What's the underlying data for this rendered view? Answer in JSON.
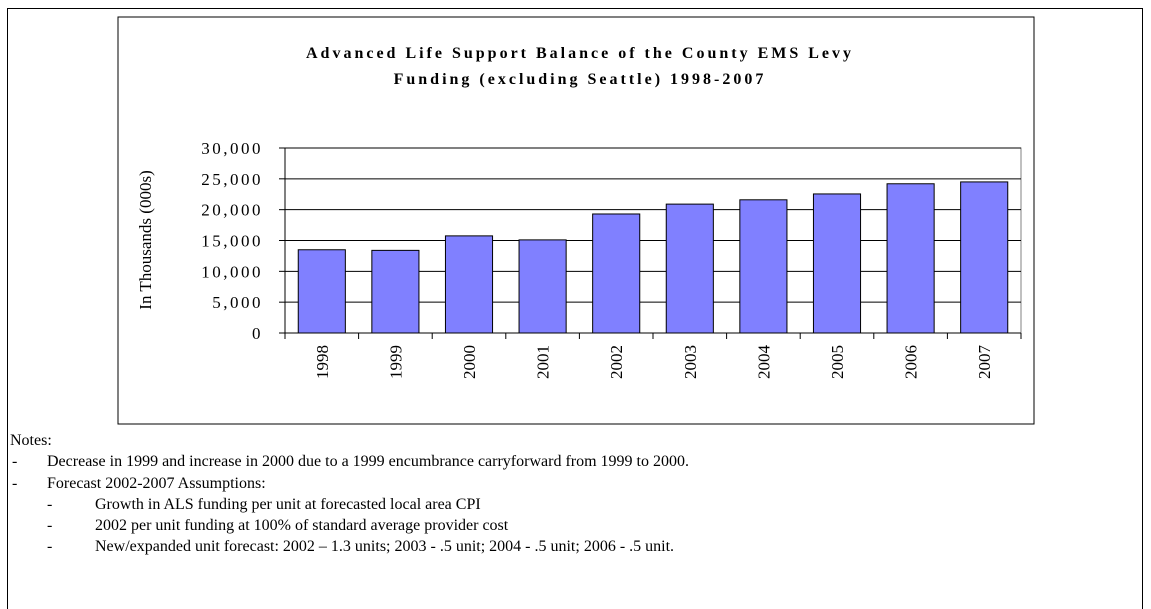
{
  "chart_data": {
    "type": "bar",
    "title": [
      "Advanced Life Support Balance of the County EMS Levy",
      "Funding (excluding Seattle) 1998-2007"
    ],
    "y_label": "In Thousands (000s)",
    "categories": [
      "1998",
      "1999",
      "2000",
      "2001",
      "2002",
      "2003",
      "2004",
      "2005",
      "2006",
      "2007"
    ],
    "values": [
      13500,
      13400,
      15750,
      15100,
      19300,
      20900,
      21600,
      22550,
      24200,
      24500
    ],
    "color": "#8080ff",
    "ylim": [
      0,
      30000
    ],
    "yticks": [
      0,
      {
        "value": 5000,
        "label": "5,000"
      },
      {
        "value": 10000,
        "label": "10,000"
      },
      {
        "value": 15000,
        "label": "15,000"
      },
      {
        "value": 20000,
        "label": "20,000"
      },
      {
        "value": 25000,
        "label": "25,000"
      },
      {
        "value": 30000,
        "label": "30,000"
      }
    ],
    "grid": true
  },
  "notes": {
    "heading": "Notes:",
    "items": [
      {
        "text": "Decrease in 1999 and increase in 2000 due to a 1999 encumbrance carryforward from 1999 to 2000.",
        "subitems": []
      },
      {
        "text": "Forecast 2002-2007 Assumptions:",
        "subitems": [
          "Growth in ALS funding per unit at forecasted local area CPI",
          "2002 per unit funding at 100% of standard average provider cost",
          "New/expanded unit forecast: 2002 – 1.3 units; 2003 - .5 unit; 2004 - .5 unit; 2006 - .5 unit."
        ]
      }
    ]
  }
}
